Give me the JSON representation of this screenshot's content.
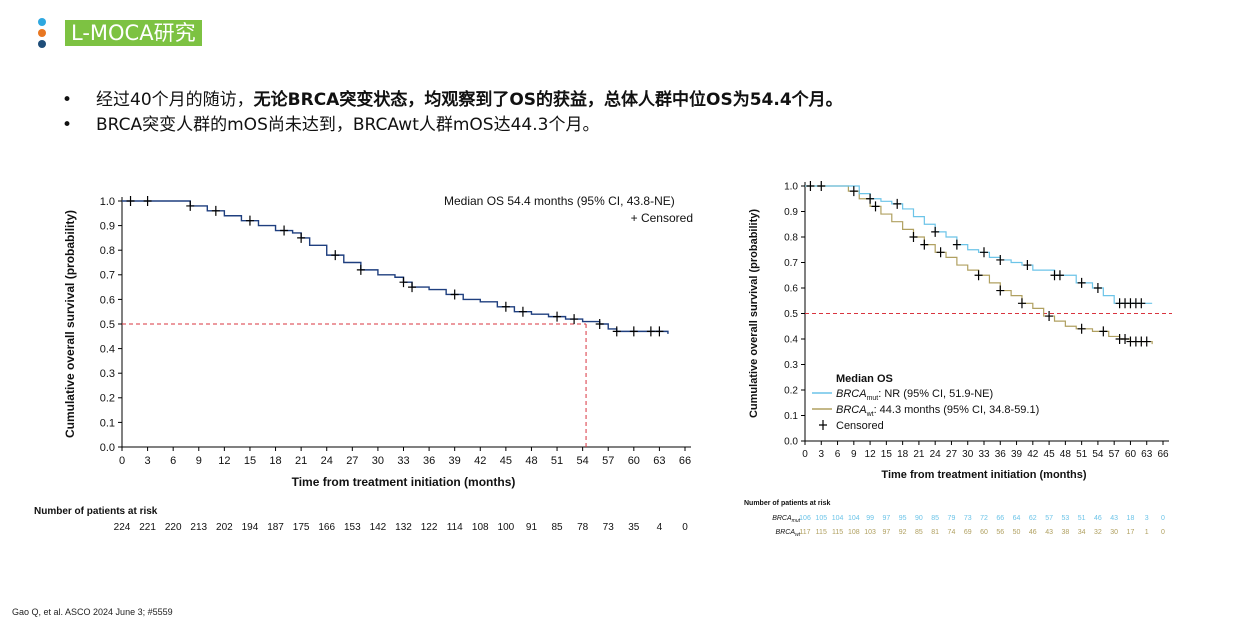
{
  "header": {
    "title": "L-MOCA研究",
    "dot_colors": [
      "#2fa8e0",
      "#e87722",
      "#1f4e79"
    ]
  },
  "bullets": [
    {
      "plain": "经过40个月的随访，",
      "bold": "无论BRCA突变状态，均观察到了OS的获益，总体人群中位OS为54.4个月。"
    },
    {
      "plain": "BRCA突变人群的mOS尚未达到，BRCAwt人群mOS达44.3个月。",
      "bold": ""
    }
  ],
  "footer": "Gao Q, et al. ASCO 2024 June 3; #5559",
  "colors": {
    "line_overall": "#1f3f7f",
    "line_mut": "#6cc4e8",
    "line_wt": "#b0a060",
    "ref": "#d9343f"
  },
  "chart_data": [
    {
      "type": "line",
      "annotation": "Median OS 54.4 months (95% CI, 43.8-NE)",
      "censored_label": "+  Censored",
      "xlabel": "Time from treatment initiation (months)",
      "ylabel": "Cumulative overall survival (probability)",
      "xlim": [
        0,
        66
      ],
      "ylim": [
        0,
        1.0
      ],
      "x_ticks": [
        0,
        3,
        6,
        9,
        12,
        15,
        18,
        21,
        24,
        27,
        30,
        33,
        36,
        39,
        42,
        45,
        48,
        51,
        54,
        57,
        60,
        63,
        66
      ],
      "y_ticks": [
        "0.0",
        "0.1",
        "0.2",
        "0.3",
        "0.4",
        "0.5",
        "0.6",
        "0.7",
        "0.8",
        "0.9",
        "1.0"
      ],
      "median_line": {
        "y": 0.5,
        "x": 54.4
      },
      "series": [
        {
          "name": "",
          "x": [
            0,
            6,
            8,
            10,
            12,
            14,
            16,
            18,
            20,
            21,
            22,
            24,
            26,
            28,
            30,
            32,
            33,
            34,
            36,
            38,
            40,
            42,
            44,
            46,
            48,
            50,
            52,
            54,
            56,
            57,
            58,
            64
          ],
          "y": [
            1.0,
            1.0,
            0.98,
            0.96,
            0.94,
            0.92,
            0.9,
            0.88,
            0.87,
            0.85,
            0.82,
            0.78,
            0.75,
            0.72,
            0.7,
            0.69,
            0.67,
            0.65,
            0.64,
            0.62,
            0.6,
            0.59,
            0.57,
            0.55,
            0.54,
            0.53,
            0.52,
            0.51,
            0.5,
            0.48,
            0.47,
            0.46
          ]
        }
      ],
      "censor_x": [
        1,
        3,
        8,
        11,
        15,
        19,
        21,
        25,
        28,
        33,
        34,
        39,
        45,
        47,
        51,
        53,
        56,
        58,
        60,
        62,
        63
      ],
      "risk_table": {
        "title": "Number of patients at risk",
        "counts": [
          "224",
          "221",
          "220",
          "213",
          "202",
          "194",
          "187",
          "175",
          "166",
          "153",
          "142",
          "132",
          "122",
          "114",
          "108",
          "100",
          "91",
          "85",
          "78",
          "73",
          "35",
          "4",
          "0"
        ]
      }
    },
    {
      "type": "line",
      "legend_title": "Median OS",
      "legend_entries": [
        {
          "gene": "BRCA",
          "sub": "mut",
          "text": ": NR (95% CI, 51.9-NE)"
        },
        {
          "gene": "BRCA",
          "sub": "wt",
          "text": ": 44.3 months (95% CI, 34.8-59.1)"
        }
      ],
      "censored_label": "Censored",
      "xlabel": "Time from treatment initiation (months)",
      "ylabel": "Cumulative overall survival (probability)",
      "xlim": [
        0,
        66
      ],
      "ylim": [
        0,
        1.0
      ],
      "x_ticks": [
        0,
        3,
        6,
        9,
        12,
        15,
        18,
        21,
        24,
        27,
        30,
        33,
        36,
        39,
        42,
        45,
        48,
        51,
        54,
        57,
        60,
        63,
        66
      ],
      "y_ticks": [
        "0.0",
        "0.1",
        "0.2",
        "0.3",
        "0.4",
        "0.5",
        "0.6",
        "0.7",
        "0.8",
        "0.9",
        "1.0"
      ],
      "median_line": {
        "y": 0.5
      },
      "series": [
        {
          "name": "BRCAmut",
          "x": [
            0,
            8,
            10,
            12,
            14,
            16,
            18,
            20,
            22,
            24,
            26,
            28,
            30,
            32,
            34,
            36,
            38,
            40,
            42,
            46,
            50,
            53,
            55,
            57,
            64
          ],
          "y": [
            1.0,
            1.0,
            0.97,
            0.95,
            0.94,
            0.93,
            0.91,
            0.88,
            0.85,
            0.82,
            0.8,
            0.77,
            0.75,
            0.74,
            0.72,
            0.71,
            0.7,
            0.69,
            0.67,
            0.65,
            0.62,
            0.6,
            0.57,
            0.54,
            0.54
          ]
        },
        {
          "name": "BRCAwt",
          "x": [
            0,
            8,
            10,
            12,
            14,
            16,
            18,
            20,
            22,
            24,
            26,
            28,
            30,
            32,
            34,
            36,
            38,
            40,
            42,
            44,
            46,
            48,
            50,
            53,
            56,
            58,
            60,
            64
          ],
          "y": [
            1.0,
            0.98,
            0.95,
            0.92,
            0.89,
            0.86,
            0.83,
            0.8,
            0.77,
            0.74,
            0.72,
            0.69,
            0.67,
            0.65,
            0.62,
            0.59,
            0.57,
            0.54,
            0.52,
            0.49,
            0.47,
            0.45,
            0.44,
            0.43,
            0.41,
            0.4,
            0.39,
            0.38
          ]
        }
      ],
      "censor_mut": [
        1,
        3,
        12,
        17,
        24,
        28,
        33,
        36,
        41,
        46,
        47,
        51,
        54,
        58,
        59,
        60,
        61,
        62
      ],
      "censor_wt": [
        9,
        13,
        20,
        22,
        25,
        32,
        36,
        40,
        45,
        51,
        55,
        58,
        59,
        60,
        61,
        62,
        63
      ],
      "risk_table": {
        "title": "Number of patients at risk",
        "rows": [
          {
            "gene": "BRCA",
            "sub": "mut",
            "counts": [
              "106",
              "105",
              "104",
              "104",
              "99",
              "97",
              "95",
              "90",
              "85",
              "79",
              "73",
              "72",
              "66",
              "64",
              "62",
              "57",
              "53",
              "51",
              "46",
              "43",
              "18",
              "3",
              "0"
            ]
          },
          {
            "gene": "BRCA",
            "sub": "wt",
            "counts": [
              "117",
              "115",
              "115",
              "108",
              "103",
              "97",
              "92",
              "85",
              "81",
              "74",
              "69",
              "60",
              "56",
              "50",
              "46",
              "43",
              "38",
              "34",
              "32",
              "30",
              "17",
              "1",
              "0"
            ]
          }
        ]
      }
    }
  ]
}
